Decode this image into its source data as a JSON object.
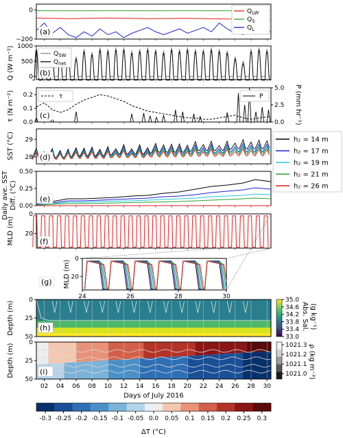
{
  "chart_data": [
    {
      "panel": "(a)",
      "type": "line",
      "ylabel": "Q (W m⁻²)",
      "ylim": [
        -200,
        40
      ],
      "yticks": [
        "0",
        "−200"
      ],
      "legend": [
        "Q_LW",
        "Q_S",
        "Q_L"
      ],
      "legend_placement": "top-right",
      "series": [
        {
          "name": "Q_LW",
          "color": "#e41a1c",
          "x": [
            1,
            5,
            10,
            15,
            20,
            25,
            30.5
          ],
          "y": [
            -55,
            -60,
            -55,
            -60,
            -58,
            -62,
            -65
          ]
        },
        {
          "name": "Q_S",
          "color": "#2ca02c",
          "x": [
            1,
            5,
            10,
            15,
            20,
            25,
            30.5
          ],
          "y": [
            -5,
            -6,
            -5,
            -6,
            -5,
            -6,
            -5
          ]
        },
        {
          "name": "Q_L",
          "color": "#1f1fd6",
          "x": [
            1,
            2,
            3,
            4,
            5,
            6,
            7,
            8,
            9,
            10,
            11,
            12,
            13,
            14,
            15,
            16,
            17,
            18,
            19,
            20,
            21,
            22,
            23,
            24,
            25,
            26,
            27,
            28,
            29,
            30.5
          ],
          "y": [
            -140,
            -90,
            -160,
            -120,
            -170,
            -190,
            -150,
            -180,
            -130,
            -170,
            -150,
            -190,
            -160,
            -140,
            -120,
            -150,
            -170,
            -150,
            -130,
            -160,
            -140,
            -120,
            -150,
            -90,
            -130,
            -160,
            -170,
            -150,
            -130,
            -150
          ]
        }
      ]
    },
    {
      "panel": "(b)",
      "type": "line",
      "ylim": [
        -100,
        1000
      ],
      "yticks": [
        "0",
        "500",
        "1000"
      ],
      "legend": [
        "Q_SW",
        "Q_net"
      ],
      "legend_placement": "top-left",
      "diurnal": {
        "days": [
          1,
          2,
          3,
          4,
          5,
          6,
          7,
          8,
          9,
          10,
          11,
          12,
          13,
          14,
          15,
          16,
          17,
          18,
          19,
          20,
          21,
          22,
          23,
          24,
          25,
          26,
          27,
          28,
          29,
          30
        ],
        "q_sw_peak": [
          950,
          850,
          780,
          900,
          950,
          650,
          900,
          800,
          950,
          900,
          950,
          950,
          850,
          900,
          950,
          900,
          850,
          950,
          900,
          950,
          900,
          900,
          950,
          900,
          850,
          650,
          500,
          900,
          950,
          900
        ],
        "q_net_peak": [
          870,
          770,
          700,
          820,
          870,
          570,
          820,
          720,
          870,
          820,
          870,
          870,
          770,
          820,
          870,
          820,
          770,
          870,
          820,
          870,
          820,
          820,
          870,
          820,
          770,
          570,
          420,
          820,
          870,
          820
        ],
        "night_q_net": -120
      },
      "series": [
        {
          "name": "Q_SW",
          "color": "#888888"
        },
        {
          "name": "Q_net",
          "color": "#000000"
        }
      ]
    },
    {
      "panel": "(c)",
      "type": "line",
      "ylabel": "τ (N m⁻²)",
      "ylabel_right": "P (mm hr⁻¹)",
      "ylim": [
        0,
        0.25
      ],
      "ylim_right": [
        0,
        5.0
      ],
      "yticks": [
        "0.0",
        "0.1",
        "0.2"
      ],
      "yticks_right": [
        "0.0",
        "2.5",
        "5.0"
      ],
      "legend_left": "τ",
      "legend_right": "P",
      "series": [
        {
          "name": "τ",
          "style": "dashed",
          "color": "#000000",
          "x": [
            1,
            2,
            3,
            4,
            5,
            6,
            7,
            8,
            9,
            10,
            11,
            12,
            13,
            14,
            15,
            16,
            17,
            18,
            19,
            20,
            21,
            22,
            23,
            24,
            25,
            26,
            27,
            28,
            29,
            30.5
          ],
          "y": [
            0.11,
            0.14,
            0.09,
            0.07,
            0.09,
            0.13,
            0.16,
            0.18,
            0.2,
            0.19,
            0.17,
            0.15,
            0.12,
            0.1,
            0.08,
            0.07,
            0.06,
            0.05,
            0.04,
            0.03,
            0.03,
            0.02,
            0.02,
            0.03,
            0.04,
            0.05,
            0.03,
            0.02,
            0.03,
            0.04
          ]
        },
        {
          "name": "P",
          "color": "#000000",
          "axis": "right",
          "x": [
            1,
            3,
            6,
            13,
            14.5,
            15.3,
            16.1,
            17,
            18.5,
            19.4,
            20.8,
            21.6,
            25,
            26.4,
            27.2,
            27.8,
            28.6,
            29.4,
            30.2
          ],
          "y": [
            0.6,
            0.5,
            1.5,
            1.2,
            1.3,
            0.9,
            0.7,
            1.0,
            1.8,
            1.5,
            1.2,
            0.8,
            1.4,
            4.2,
            2.5,
            5.0,
            1.5,
            2.2,
            1.8
          ]
        }
      ]
    },
    {
      "panel": "(d)",
      "type": "line",
      "ylabel": "SST (°C)",
      "ylim": [
        27.6,
        29.6
      ],
      "yticks": [
        "28",
        "29"
      ],
      "legend": [
        "h₂ = 14 m",
        "h₂ = 17 m",
        "h₂ = 19 m",
        "h₂ = 21 m",
        "h₂ = 26 m"
      ],
      "legend_placement": "outside-right",
      "series": [
        {
          "name": "h₂ = 14 m",
          "color": "#000000",
          "base": [
            27.95,
            28.05,
            28.15,
            28.25,
            28.35,
            28.45,
            28.55
          ],
          "amp": 0.55
        },
        {
          "name": "h₂ = 17 m",
          "color": "#1f1fd6",
          "base": [
            27.92,
            28.0,
            28.08,
            28.15,
            28.22,
            28.3,
            28.4
          ],
          "amp": 0.5
        },
        {
          "name": "h₂ = 19 m",
          "color": "#1ec8d6",
          "base": [
            27.9,
            27.97,
            28.03,
            28.1,
            28.16,
            28.22,
            28.3
          ],
          "amp": 0.47
        },
        {
          "name": "h₂ = 21 m",
          "color": "#2ca02c",
          "base": [
            27.88,
            27.94,
            27.99,
            28.05,
            28.1,
            28.15,
            28.2
          ],
          "amp": 0.45
        },
        {
          "name": "h₂ = 26 m",
          "color": "#e41a1c",
          "base": [
            27.85,
            27.9,
            27.94,
            27.98,
            28.02,
            28.05,
            28.1
          ],
          "amp": 0.42
        }
      ]
    },
    {
      "panel": "(e)",
      "type": "line",
      "ylabel": "Daily ave. SST Diff. (°C)",
      "ylim": [
        0,
        0.5
      ],
      "yticks": [
        "0.00",
        "0.25",
        "0.50"
      ],
      "series": [
        {
          "name": "h₂ = 14 m",
          "color": "#000000",
          "x": [
            1,
            3,
            5,
            7,
            9,
            11,
            13,
            15,
            17,
            19,
            21,
            23,
            25,
            27,
            28.5,
            30.5
          ],
          "y": [
            0.02,
            0.06,
            0.1,
            0.1,
            0.11,
            0.12,
            0.14,
            0.15,
            0.18,
            0.2,
            0.24,
            0.28,
            0.3,
            0.33,
            0.38,
            0.35
          ]
        },
        {
          "name": "h₂ = 17 m",
          "color": "#1f1fd6",
          "x": [
            1,
            3,
            5,
            7,
            9,
            11,
            13,
            15,
            17,
            19,
            21,
            23,
            25,
            27,
            28.5,
            30.5
          ],
          "y": [
            0.015,
            0.04,
            0.07,
            0.07,
            0.08,
            0.09,
            0.1,
            0.11,
            0.13,
            0.14,
            0.16,
            0.19,
            0.21,
            0.23,
            0.26,
            0.24
          ]
        },
        {
          "name": "h₂ = 19 m",
          "color": "#1ec8d6",
          "x": [
            1,
            3,
            5,
            7,
            9,
            11,
            13,
            15,
            17,
            19,
            21,
            23,
            25,
            27,
            28.5,
            30.5
          ],
          "y": [
            0.01,
            0.03,
            0.05,
            0.05,
            0.06,
            0.065,
            0.07,
            0.08,
            0.09,
            0.1,
            0.11,
            0.13,
            0.14,
            0.15,
            0.17,
            0.16
          ]
        },
        {
          "name": "h₂ = 21 m",
          "color": "#2ca02c",
          "x": [
            1,
            3,
            5,
            7,
            9,
            11,
            13,
            15,
            17,
            19,
            21,
            23,
            25,
            27,
            28.5,
            30.5
          ],
          "y": [
            0.005,
            0.02,
            0.03,
            0.03,
            0.035,
            0.04,
            0.045,
            0.05,
            0.055,
            0.06,
            0.07,
            0.08,
            0.09,
            0.1,
            0.11,
            0.1
          ]
        },
        {
          "name": "h₂ = 26 m",
          "color": "#e41a1c",
          "x": [
            1,
            30.5
          ],
          "y": [
            0,
            0
          ]
        }
      ]
    },
    {
      "panel": "(f)",
      "type": "line",
      "ylabel": "MLD (m)",
      "ylim": [
        35,
        0
      ],
      "yticks": [
        "0",
        "20"
      ],
      "series": [
        {
          "name": "MLD",
          "color": "#e41a1c",
          "shallow": 2,
          "deep": 34,
          "days": [
            1,
            2,
            3,
            4,
            5,
            6,
            7,
            8,
            9,
            10,
            11,
            12,
            13,
            14,
            15,
            16,
            17,
            18,
            19,
            20,
            21,
            22,
            23,
            24,
            25,
            26,
            27,
            28,
            29,
            30
          ]
        }
      ]
    },
    {
      "panel": "(g)",
      "type": "line",
      "ylabel": "MLD (m)",
      "xlim": [
        24,
        30
      ],
      "ylim": [
        35,
        0
      ],
      "xticks": [
        "24",
        "26",
        "28",
        "30"
      ],
      "yticks": [
        "0",
        "20"
      ],
      "days": [
        24,
        25,
        26,
        27,
        28,
        29
      ]
    },
    {
      "panel": "(h)",
      "type": "heatmap",
      "ylabel": "Depth (m)",
      "ylim": [
        50,
        0
      ],
      "yticks": [
        "0",
        "25",
        "50"
      ],
      "colorbar_label": "Abs. Sal. (g kg⁻¹)",
      "colorbar_ticks": [
        "35.0",
        "34.6",
        "34.2",
        "33.8",
        "33.4",
        "33.0"
      ],
      "colormap": [
        "#440154",
        "#3b528b",
        "#21918c",
        "#5ec962",
        "#fde725"
      ],
      "profile": [
        {
          "depth": 0,
          "sal": 33.6
        },
        {
          "depth": 30,
          "sal": 33.7
        },
        {
          "depth": 35,
          "sal": 34.0
        },
        {
          "depth": 42,
          "sal": 34.6
        },
        {
          "depth": 50,
          "sal": 35.0
        }
      ]
    },
    {
      "panel": "(i)",
      "type": "heatmap",
      "ylabel": "Depth (m)",
      "xlabel": "Days of July 2016",
      "ylim": [
        50,
        0
      ],
      "yticks": [
        "0",
        "25",
        "50"
      ],
      "xticks": [
        "02",
        "04",
        "06",
        "08",
        "10",
        "12",
        "14",
        "16",
        "18",
        "20",
        "22",
        "24",
        "26",
        "28",
        "30"
      ],
      "density_colorbar_label": "ρ (kg m⁻³)",
      "density_ticks": [
        "1021.3",
        "1021.2",
        "1021.1",
        "1021.0"
      ],
      "surface_dT": [
        {
          "day": 1,
          "dT": 0.0
        },
        {
          "day": 4,
          "dT": 0.05
        },
        {
          "day": 8,
          "dT": 0.1
        },
        {
          "day": 12,
          "dT": 0.15
        },
        {
          "day": 16,
          "dT": 0.2
        },
        {
          "day": 20,
          "dT": 0.22
        },
        {
          "day": 24,
          "dT": 0.25
        },
        {
          "day": 30,
          "dT": 0.3
        }
      ],
      "deep_dT": [
        {
          "day": 1,
          "dT": -0.05
        },
        {
          "day": 8,
          "dT": -0.1
        },
        {
          "day": 16,
          "dT": -0.2
        },
        {
          "day": 24,
          "dT": -0.25
        },
        {
          "day": 30,
          "dT": -0.3
        }
      ]
    }
  ],
  "colorbar_dT": {
    "label": "ΔT (°C)",
    "ticks": [
      "-0.3",
      "-0.25",
      "-0.2",
      "-0.15",
      "-0.1",
      "-0.05",
      "0.0",
      "0.05",
      "0.1",
      "0.15",
      "0.2",
      "0.25",
      "0.3"
    ],
    "colors": [
      "#08306b",
      "#1a4f96",
      "#2f6fb5",
      "#4a90c7",
      "#7bb3d8",
      "#b5d3e8",
      "#eeeeee",
      "#f4c7b0",
      "#e8927a",
      "#d2604a",
      "#b43328",
      "#8a1616",
      "#5a0a0a"
    ]
  }
}
